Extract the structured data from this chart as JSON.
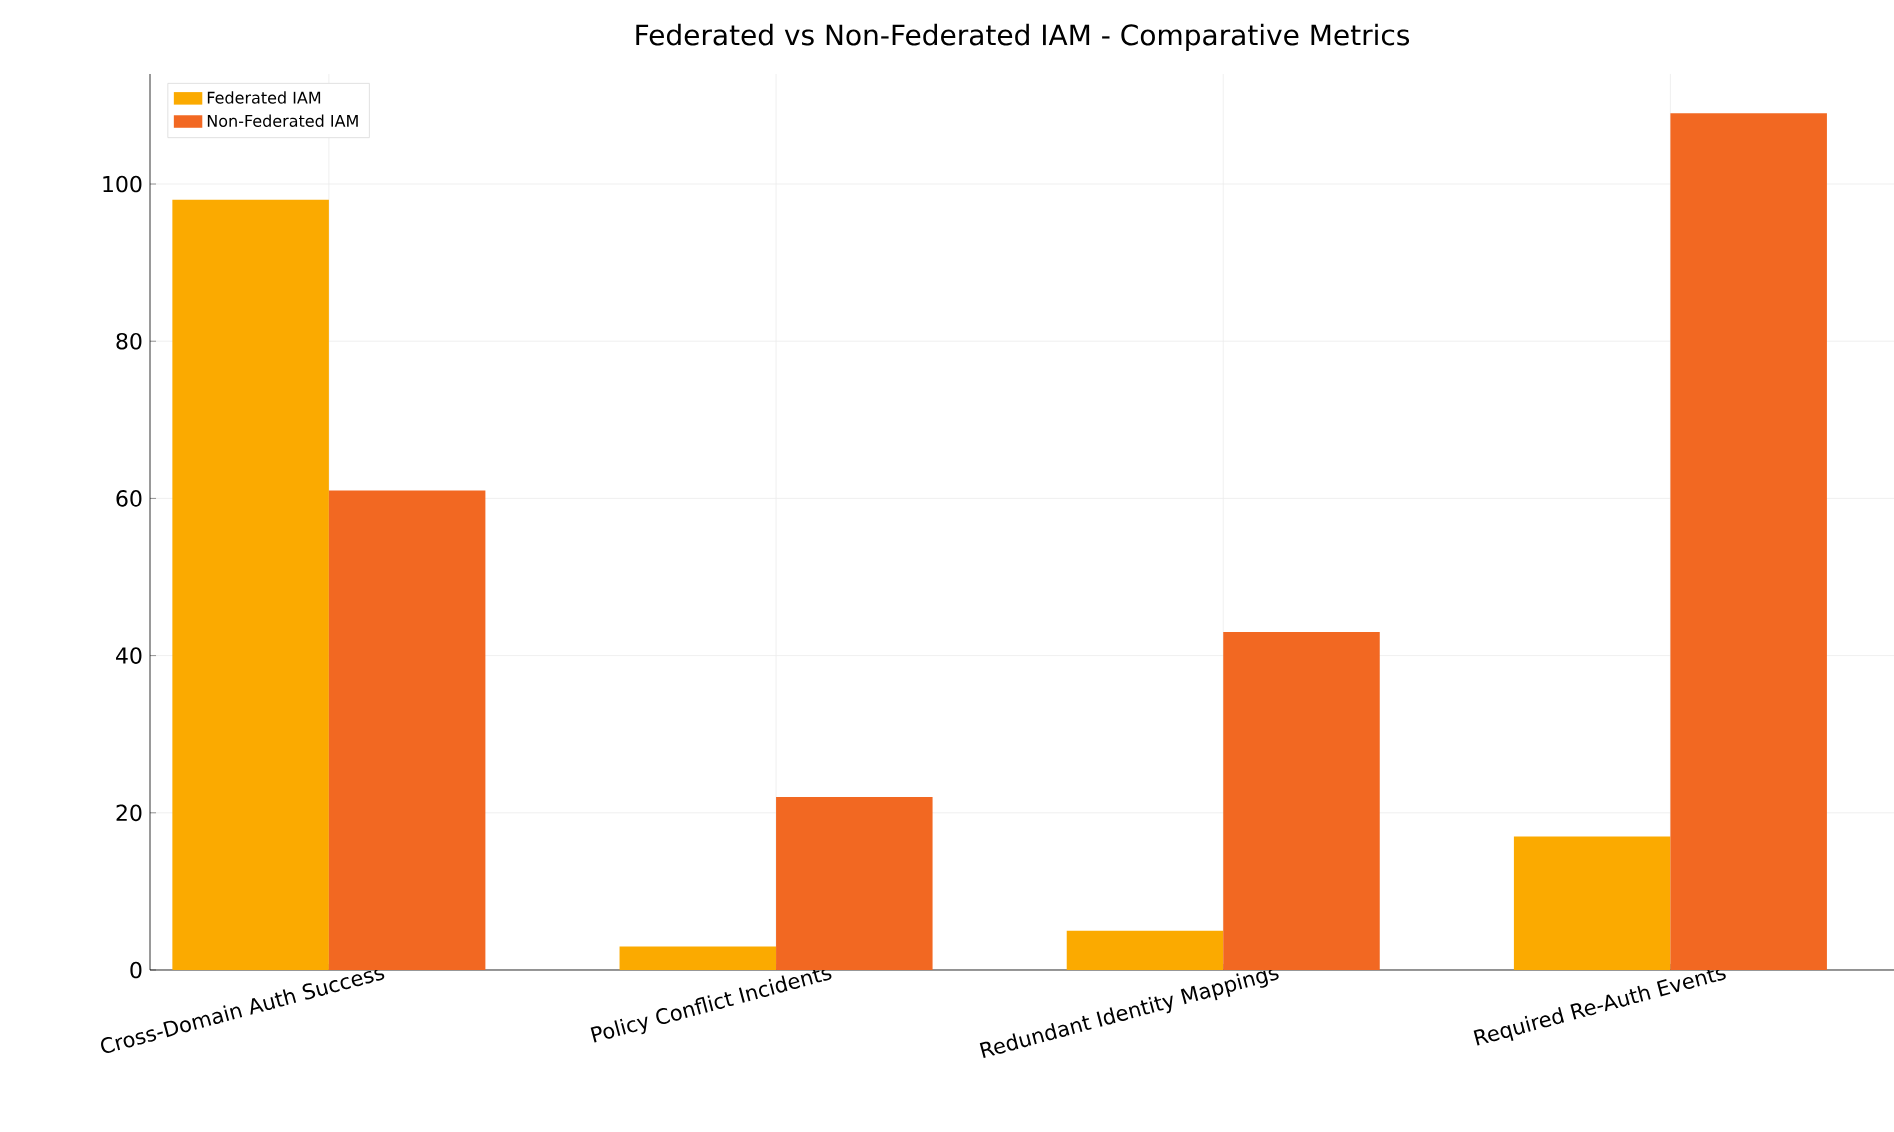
{
  "chart_data": {
    "type": "bar",
    "title": "Federated vs Non-Federated IAM - Comparative Metrics",
    "categories": [
      "Cross-Domain Auth Success",
      "Policy Conflict Incidents",
      "Redundant Identity Mappings",
      "Required Re-Auth Events"
    ],
    "series": [
      {
        "name": "Federated IAM",
        "color": "#fbaa00",
        "values": [
          98,
          3,
          5,
          17
        ]
      },
      {
        "name": "Non-Federated IAM",
        "color": "#f26822",
        "values": [
          61,
          22,
          43,
          109
        ]
      }
    ],
    "ylim": [
      0,
      114
    ],
    "yticks": [
      0,
      20,
      40,
      60,
      80,
      100
    ],
    "grid": true,
    "legend": "top left"
  }
}
